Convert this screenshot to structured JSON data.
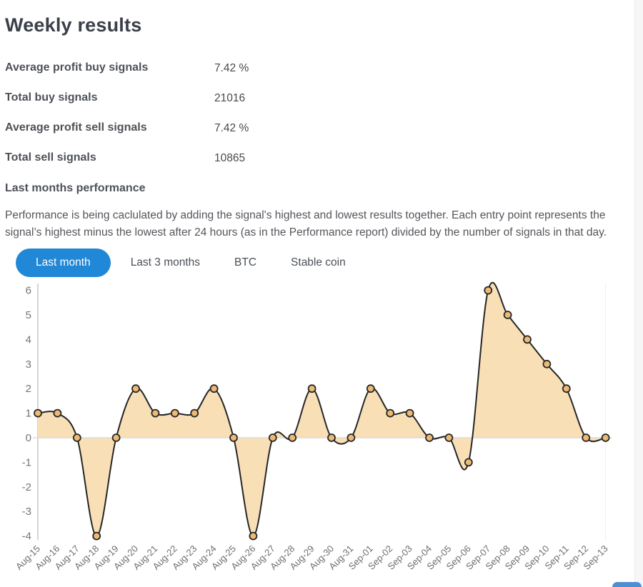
{
  "header": {
    "title": "Weekly results"
  },
  "stats": [
    {
      "label": "Average profit buy signals",
      "value": "7.42 %"
    },
    {
      "label": "Total buy signals",
      "value": "21016"
    },
    {
      "label": "Average profit sell signals",
      "value": "7.42 %"
    },
    {
      "label": "Total sell signals",
      "value": "10865"
    }
  ],
  "section": {
    "heading": "Last months performance",
    "description_lines": [
      "Performance is being caclulated by adding the signal's highest and lowest results together. Each entry point represents the",
      "signal’s highest minus the lowest after 24 hours (as in the Performance report) divided by the number of signals in that day."
    ]
  },
  "tabs": [
    {
      "label": "Last month",
      "active": true
    },
    {
      "label": "Last 3 months",
      "active": false
    },
    {
      "label": "BTC",
      "active": false
    },
    {
      "label": "Stable coin",
      "active": false
    }
  ],
  "colors": {
    "accent_blue": "#2187d7",
    "title_text": "#3a3f49",
    "body_text": "#53565b"
  },
  "chart_data": {
    "type": "area",
    "title": "",
    "xlabel": "",
    "ylabel": "",
    "x": [
      "Aug-15",
      "Aug-16",
      "Aug-17",
      "Aug-18",
      "Aug-19",
      "Aug-20",
      "Aug-21",
      "Aug-22",
      "Aug-23",
      "Aug-24",
      "Aug-25",
      "Aug-26",
      "Aug-27",
      "Aug-28",
      "Aug-29",
      "Aug-30",
      "Aug-31",
      "Sep-01",
      "Sep-02",
      "Sep-03",
      "Sep-04",
      "Sep-05",
      "Sep-06",
      "Sep-07",
      "Sep-08",
      "Sep-09",
      "Sep-10",
      "Sep-11",
      "Sep-12",
      "Sep-13"
    ],
    "values": [
      1,
      1,
      0,
      -4,
      0,
      2,
      1,
      1,
      1,
      2,
      0,
      -4,
      0,
      0,
      2,
      0,
      0,
      2,
      1,
      1,
      0,
      0,
      -1,
      6,
      5,
      4,
      3,
      2,
      0,
      0
    ],
    "yticks": [
      6,
      5,
      4,
      3,
      2,
      1,
      0,
      -1,
      -2,
      -3,
      -4
    ],
    "ylim": [
      -4.3,
      6.3
    ],
    "grid": "zero-line-only",
    "legend": "none",
    "smooth": true,
    "line_color": "#262626",
    "fill_color": "#f8dfb6",
    "marker_fill": "#ecba75",
    "axis_color": "#d4d4d4",
    "zero_line_color": "#dcdcdc",
    "ytick_color": "#757575",
    "xtick_color": "#6f6f6f"
  }
}
